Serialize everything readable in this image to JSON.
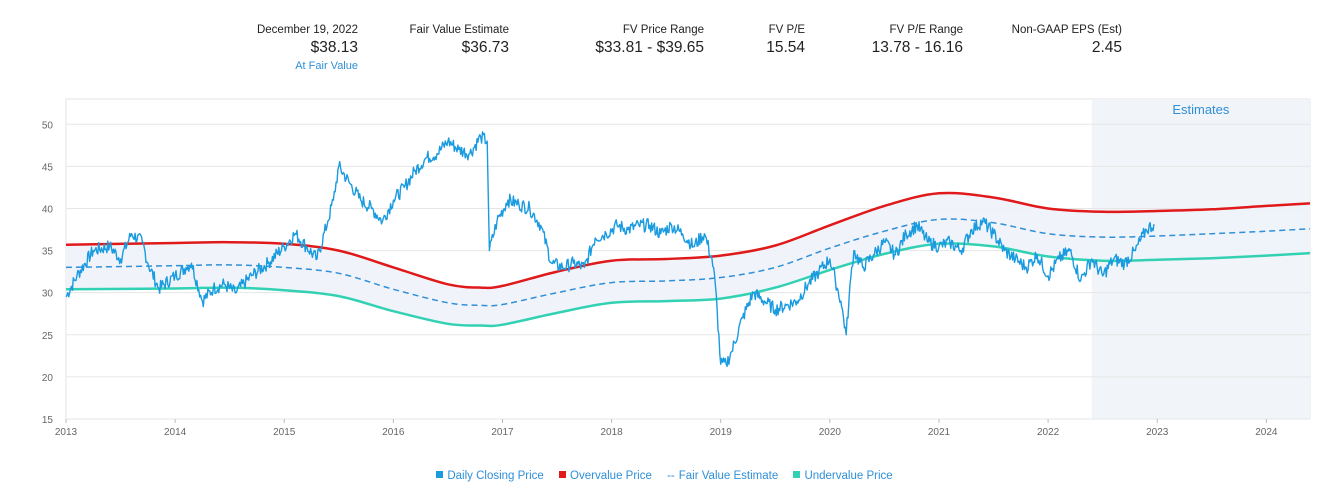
{
  "header": {
    "date_label": "December 19, 2022",
    "price": "$38.13",
    "valuation_status": "At Fair Value",
    "fair_value_label": "Fair Value Estimate",
    "fair_value": "$36.73",
    "fv_range_label": "FV Price Range",
    "fv_range": "$33.81 - $39.65",
    "fv_pe_label": "FV P/E",
    "fv_pe": "15.54",
    "fv_pe_range_label": "FV P/E Range",
    "fv_pe_range": "13.78 - 16.16",
    "eps_label": "Non-GAAP EPS (Est)",
    "eps": "2.45"
  },
  "colors": {
    "price": "#1a9be0",
    "overvalue": "#e0191b",
    "fair_value": "#2f8fd8",
    "undervalue": "#33d1b3",
    "band_fill": "#eef3fa",
    "estimates_shade": "#f1f4f8",
    "grid": "#e6e6e6"
  },
  "legend": {
    "price": "Daily Closing Price",
    "overvalue": "Overvalue Price",
    "fair_value": "Fair Value Estimate",
    "undervalue": "Undervalue Price"
  },
  "chart_data": {
    "type": "line",
    "estimates_label": "Estimates",
    "estimates_start": 2022.4,
    "xlim": [
      2013,
      2024.4
    ],
    "ylim": [
      15,
      53
    ],
    "y_ticks": [
      15,
      20,
      25,
      30,
      35,
      40,
      45,
      50
    ],
    "x_ticks": [
      "2013",
      "2014",
      "2015",
      "2016",
      "2017",
      "2018",
      "2019",
      "2020",
      "2021",
      "2022",
      "2023",
      "2024"
    ],
    "grid": true,
    "legend_position": "bottom",
    "series": [
      {
        "key": "price",
        "x": [
          2013.0,
          2013.1,
          2013.25,
          2013.4,
          2013.5,
          2013.6,
          2013.7,
          2013.75,
          2013.85,
          2014.0,
          2014.1,
          2014.15,
          2014.25,
          2014.35,
          2014.45,
          2014.55,
          2014.7,
          2014.85,
          2015.0,
          2015.1,
          2015.2,
          2015.3,
          2015.4,
          2015.45,
          2015.5,
          2015.6,
          2015.7,
          2015.8,
          2015.9,
          2016.0,
          2016.1,
          2016.2,
          2016.3,
          2016.4,
          2016.5,
          2016.6,
          2016.7,
          2016.8,
          2016.86,
          2016.88,
          2016.95,
          2017.05,
          2017.15,
          2017.25,
          2017.35,
          2017.45,
          2017.55,
          2017.65,
          2017.75,
          2017.85,
          2017.95,
          2018.05,
          2018.15,
          2018.25,
          2018.35,
          2018.45,
          2018.55,
          2018.65,
          2018.75,
          2018.85,
          2018.92,
          2018.95,
          2019.0,
          2019.05,
          2019.1,
          2019.2,
          2019.3,
          2019.4,
          2019.5,
          2019.6,
          2019.7,
          2019.8,
          2019.9,
          2020.0,
          2020.05,
          2020.1,
          2020.15,
          2020.2,
          2020.22,
          2020.3,
          2020.4,
          2020.5,
          2020.6,
          2020.7,
          2020.8,
          2020.9,
          2021.0,
          2021.1,
          2021.2,
          2021.3,
          2021.4,
          2021.5,
          2021.6,
          2021.7,
          2021.8,
          2021.9,
          2022.0,
          2022.1,
          2022.2,
          2022.3,
          2022.4,
          2022.5,
          2022.6,
          2022.7,
          2022.8,
          2022.9,
          2022.97
        ],
        "y": [
          29.5,
          32,
          35,
          35.5,
          34,
          37,
          36,
          33.5,
          30.5,
          32,
          33,
          33.5,
          29,
          30.5,
          31,
          30,
          32,
          33.5,
          35.5,
          37,
          35.5,
          34,
          38.5,
          41,
          45,
          43,
          41,
          40,
          38.5,
          41,
          42.5,
          44.5,
          46,
          46.5,
          48,
          47,
          46.5,
          48.5,
          48,
          35,
          38.5,
          41,
          40.5,
          40,
          38,
          33.5,
          33,
          33.5,
          33,
          36.5,
          37,
          38,
          37.5,
          38,
          38,
          37,
          38,
          37,
          35.5,
          37,
          34,
          31,
          21.5,
          21.5,
          23,
          27,
          30,
          29,
          28,
          28.5,
          29,
          31,
          32.5,
          34,
          31.5,
          29,
          25,
          33,
          35,
          33,
          34.5,
          36,
          34.5,
          37,
          38,
          36,
          35.5,
          36,
          35,
          37.5,
          38.5,
          37,
          35,
          34,
          33,
          34.5,
          32,
          34,
          35,
          31.5,
          34,
          32,
          34,
          33.5,
          35,
          37.5,
          38.13
        ]
      },
      {
        "key": "overvalue",
        "x": [
          2013.0,
          2014.0,
          2014.5,
          2015.0,
          2015.5,
          2016.0,
          2016.5,
          2016.8,
          2017.0,
          2017.5,
          2018.0,
          2018.5,
          2019.0,
          2019.5,
          2020.0,
          2020.5,
          2021.0,
          2021.5,
          2022.0,
          2022.5,
          2023.0,
          2023.5,
          2024.0,
          2024.4
        ],
        "y": [
          35.7,
          35.9,
          36.0,
          35.8,
          35.0,
          33.0,
          31.0,
          30.6,
          30.8,
          32.5,
          33.8,
          34.0,
          34.4,
          35.6,
          38.0,
          40.3,
          41.8,
          41.3,
          40.0,
          39.6,
          39.7,
          39.9,
          40.3,
          40.6
        ]
      },
      {
        "key": "fair_value",
        "x": [
          2013.0,
          2014.0,
          2014.5,
          2015.0,
          2015.5,
          2016.0,
          2016.5,
          2016.8,
          2017.0,
          2017.5,
          2018.0,
          2018.5,
          2019.0,
          2019.5,
          2020.0,
          2020.5,
          2021.0,
          2021.5,
          2022.0,
          2022.5,
          2023.0,
          2023.5,
          2024.0,
          2024.4
        ],
        "y": [
          33.0,
          33.2,
          33.3,
          33.0,
          32.3,
          30.4,
          28.8,
          28.5,
          28.6,
          30.0,
          31.2,
          31.4,
          31.8,
          33.0,
          35.3,
          37.3,
          38.7,
          38.3,
          37.0,
          36.6,
          36.73,
          37.0,
          37.3,
          37.6
        ]
      },
      {
        "key": "undervalue",
        "x": [
          2013.0,
          2014.0,
          2014.5,
          2015.0,
          2015.5,
          2016.0,
          2016.5,
          2016.8,
          2017.0,
          2017.5,
          2018.0,
          2018.5,
          2019.0,
          2019.5,
          2020.0,
          2020.5,
          2021.0,
          2021.5,
          2022.0,
          2022.5,
          2023.0,
          2023.5,
          2024.0,
          2024.4
        ],
        "y": [
          30.4,
          30.5,
          30.6,
          30.3,
          29.6,
          27.8,
          26.3,
          26.1,
          26.2,
          27.6,
          28.8,
          29.0,
          29.3,
          30.6,
          32.7,
          34.6,
          35.8,
          35.5,
          34.3,
          33.8,
          33.9,
          34.1,
          34.4,
          34.7
        ]
      }
    ]
  }
}
